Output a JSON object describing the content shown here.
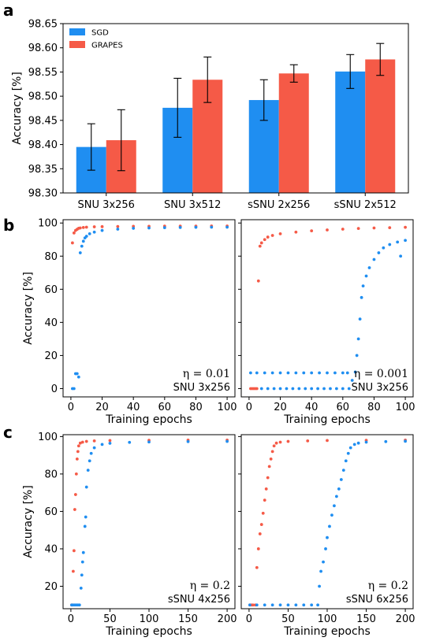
{
  "panels": {
    "a": "a",
    "b": "b",
    "c": "c"
  },
  "colors": {
    "sgd": "#1f8ef1",
    "grapes": "#f55a47"
  },
  "chart_data": [
    {
      "id": "a",
      "type": "bar",
      "categories": [
        "SNU 3x256",
        "SNU 3x512",
        "sSNU 2x256",
        "sSNU 2x512"
      ],
      "series": [
        {
          "name": "SGD",
          "values": [
            98.395,
            98.476,
            98.492,
            98.551
          ],
          "err": [
            0.048,
            0.061,
            0.042,
            0.035
          ]
        },
        {
          "name": "GRAPES",
          "values": [
            98.409,
            98.534,
            98.547,
            98.576
          ],
          "err": [
            0.063,
            0.047,
            0.018,
            0.033
          ]
        }
      ],
      "ylabel": "Accuracy [%]",
      "ylim": [
        98.3,
        98.65
      ],
      "yticks": [
        "98.30",
        "98.35",
        "98.40",
        "98.45",
        "98.50",
        "98.55",
        "98.60",
        "98.65"
      ],
      "legend": "top-left"
    },
    {
      "id": "b1",
      "type": "scatter",
      "ylabel": "Accuracy [%]",
      "xlabel": "Training epochs",
      "xlim": [
        -5,
        105
      ],
      "ylim": [
        -5,
        102
      ],
      "xticks": [
        "0",
        "20",
        "40",
        "60",
        "80",
        "100"
      ],
      "yticks": [
        "0",
        "20",
        "40",
        "60",
        "80",
        "100"
      ],
      "eta": "η = 0.01",
      "label": "SNU 3x256",
      "grapes_points": [
        [
          1,
          88
        ],
        [
          2,
          94
        ],
        [
          3,
          95.5
        ],
        [
          4,
          96.2
        ],
        [
          5,
          96.8
        ],
        [
          6,
          97
        ],
        [
          8,
          97.3
        ],
        [
          10,
          97.5
        ],
        [
          15,
          97.7
        ],
        [
          20,
          97.8
        ],
        [
          30,
          97.9
        ],
        [
          40,
          98
        ],
        [
          50,
          98
        ],
        [
          60,
          98.1
        ],
        [
          70,
          98.1
        ],
        [
          80,
          98.1
        ],
        [
          90,
          98.2
        ],
        [
          100,
          98.2
        ]
      ],
      "sgd_points": [
        [
          1,
          0
        ],
        [
          2,
          0
        ],
        [
          3,
          9
        ],
        [
          4,
          9
        ],
        [
          5,
          7
        ],
        [
          6,
          82
        ],
        [
          7,
          86
        ],
        [
          8,
          89
        ],
        [
          9,
          91
        ],
        [
          10,
          92
        ],
        [
          12,
          93.5
        ],
        [
          15,
          94.5
        ],
        [
          20,
          95.5
        ],
        [
          30,
          96.3
        ],
        [
          40,
          96.8
        ],
        [
          50,
          97
        ],
        [
          60,
          97.2
        ],
        [
          70,
          97.3
        ],
        [
          80,
          97.4
        ],
        [
          90,
          97.5
        ],
        [
          100,
          97.5
        ]
      ]
    },
    {
      "id": "b2",
      "type": "scatter",
      "xlabel": "Training epochs",
      "xlim": [
        -5,
        105
      ],
      "ylim": [
        -5,
        102
      ],
      "xticks": [
        "0",
        "20",
        "40",
        "60",
        "80",
        "100"
      ],
      "eta": "η = 0.001",
      "label": "SNU 3x256",
      "grapes_points": [
        [
          1,
          0
        ],
        [
          2,
          0
        ],
        [
          3,
          0
        ],
        [
          4,
          0
        ],
        [
          5,
          0
        ],
        [
          6,
          65
        ],
        [
          7,
          86
        ],
        [
          8,
          88
        ],
        [
          10,
          90
        ],
        [
          12,
          91.5
        ],
        [
          15,
          92.5
        ],
        [
          20,
          93.5
        ],
        [
          30,
          94.5
        ],
        [
          40,
          95.3
        ],
        [
          50,
          95.8
        ],
        [
          60,
          96.3
        ],
        [
          70,
          96.7
        ],
        [
          80,
          97
        ],
        [
          90,
          97.2
        ],
        [
          100,
          97.4
        ]
      ],
      "sgd_points": [
        [
          1,
          9.5
        ],
        [
          5,
          9.5
        ],
        [
          10,
          9.5
        ],
        [
          15,
          9.5
        ],
        [
          20,
          9.5
        ],
        [
          25,
          9.5
        ],
        [
          30,
          9.5
        ],
        [
          35,
          9.5
        ],
        [
          40,
          9.5
        ],
        [
          45,
          9.5
        ],
        [
          50,
          9.5
        ],
        [
          55,
          9.5
        ],
        [
          60,
          9.5
        ],
        [
          63,
          9.5
        ],
        [
          8,
          0
        ],
        [
          12,
          0
        ],
        [
          16,
          0
        ],
        [
          20,
          0
        ],
        [
          24,
          0
        ],
        [
          28,
          0
        ],
        [
          32,
          0
        ],
        [
          36,
          0
        ],
        [
          40,
          0
        ],
        [
          44,
          0
        ],
        [
          48,
          0
        ],
        [
          52,
          0
        ],
        [
          56,
          0
        ],
        [
          60,
          0
        ],
        [
          64,
          0
        ],
        [
          66,
          5
        ],
        [
          68,
          10
        ],
        [
          69,
          20
        ],
        [
          70,
          30
        ],
        [
          71,
          42
        ],
        [
          72,
          55
        ],
        [
          73,
          62
        ],
        [
          75,
          68
        ],
        [
          77,
          73
        ],
        [
          80,
          78
        ],
        [
          83,
          82
        ],
        [
          86,
          85
        ],
        [
          90,
          87
        ],
        [
          95,
          88.5
        ],
        [
          97,
          80
        ],
        [
          100,
          89.5
        ]
      ]
    },
    {
      "id": "c1",
      "type": "scatter",
      "ylabel": "Accuracy [%]",
      "xlabel": "Training epochs",
      "xlim": [
        -10,
        210
      ],
      "ylim": [
        8,
        101
      ],
      "xticks": [
        "0",
        "50",
        "100",
        "150",
        "200"
      ],
      "yticks": [
        "20",
        "40",
        "60",
        "80",
        "100"
      ],
      "eta": "η = 0.2",
      "label": "sSNU 4x256",
      "grapes_points": [
        [
          1,
          10
        ],
        [
          2,
          10
        ],
        [
          3,
          28
        ],
        [
          4,
          39
        ],
        [
          5,
          61
        ],
        [
          6,
          69
        ],
        [
          7,
          80
        ],
        [
          8,
          88
        ],
        [
          9,
          92
        ],
        [
          10,
          95
        ],
        [
          12,
          96.5
        ],
        [
          15,
          97
        ],
        [
          20,
          97.4
        ],
        [
          30,
          97.7
        ],
        [
          50,
          97.9
        ],
        [
          100,
          98
        ],
        [
          150,
          98.1
        ],
        [
          200,
          98.1
        ]
      ],
      "sgd_points": [
        [
          1,
          10
        ],
        [
          3,
          10
        ],
        [
          5,
          10
        ],
        [
          7,
          10
        ],
        [
          9,
          10
        ],
        [
          11,
          10
        ],
        [
          13,
          19
        ],
        [
          14,
          26
        ],
        [
          15,
          33
        ],
        [
          16,
          38
        ],
        [
          18,
          52
        ],
        [
          19,
          57
        ],
        [
          20,
          73
        ],
        [
          22,
          82
        ],
        [
          24,
          87
        ],
        [
          26,
          91
        ],
        [
          30,
          94
        ],
        [
          40,
          95.8
        ],
        [
          50,
          96.4
        ],
        [
          75,
          96.9
        ],
        [
          100,
          97.1
        ],
        [
          150,
          97.3
        ],
        [
          200,
          97.4
        ]
      ]
    },
    {
      "id": "c2",
      "type": "scatter",
      "xlabel": "Training epochs",
      "xlim": [
        -10,
        210
      ],
      "ylim": [
        8,
        101
      ],
      "xticks": [
        "0",
        "50",
        "100",
        "150",
        "200"
      ],
      "eta": "η = 0.2",
      "label": "sSNU 6x256",
      "grapes_points": [
        [
          1,
          10
        ],
        [
          3,
          10
        ],
        [
          5,
          10
        ],
        [
          8,
          10
        ],
        [
          10,
          30
        ],
        [
          12,
          40
        ],
        [
          14,
          48
        ],
        [
          16,
          53
        ],
        [
          18,
          59
        ],
        [
          20,
          66
        ],
        [
          22,
          72
        ],
        [
          24,
          78
        ],
        [
          26,
          84
        ],
        [
          28,
          88
        ],
        [
          30,
          92
        ],
        [
          32,
          95
        ],
        [
          35,
          96.5
        ],
        [
          40,
          97
        ],
        [
          50,
          97.4
        ],
        [
          75,
          97.7
        ],
        [
          100,
          97.9
        ],
        [
          150,
          98
        ],
        [
          200,
          98.1
        ]
      ],
      "sgd_points": [
        [
          1,
          10
        ],
        [
          10,
          10
        ],
        [
          20,
          10
        ],
        [
          30,
          10
        ],
        [
          40,
          10
        ],
        [
          50,
          10
        ],
        [
          60,
          10
        ],
        [
          70,
          10
        ],
        [
          80,
          10
        ],
        [
          88,
          10
        ],
        [
          90,
          20
        ],
        [
          92,
          28
        ],
        [
          95,
          33
        ],
        [
          98,
          40
        ],
        [
          100,
          46
        ],
        [
          103,
          52
        ],
        [
          106,
          58
        ],
        [
          109,
          63
        ],
        [
          112,
          68
        ],
        [
          115,
          72
        ],
        [
          118,
          77
        ],
        [
          121,
          82
        ],
        [
          124,
          87
        ],
        [
          127,
          91
        ],
        [
          130,
          94
        ],
        [
          135,
          95.8
        ],
        [
          140,
          96.5
        ],
        [
          150,
          97
        ],
        [
          175,
          97.3
        ],
        [
          200,
          97.5
        ]
      ]
    }
  ]
}
